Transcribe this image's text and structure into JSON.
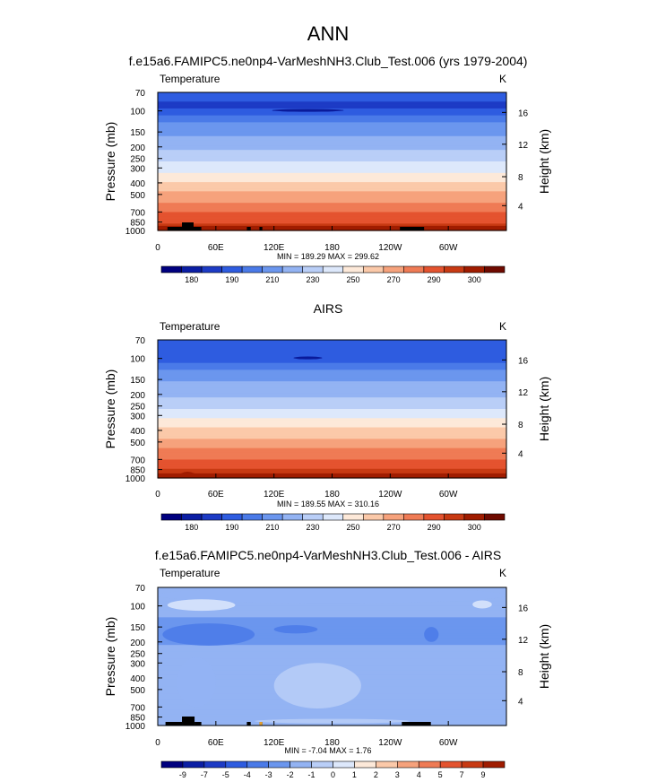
{
  "figure": {
    "main_title": "ANN",
    "unit_label": "K",
    "variable_label": "Temperature",
    "ylabel_left": "Pressure (mb)",
    "ylabel_right": "Height (km)"
  },
  "chart_data": [
    {
      "type": "heatmap",
      "title": "f.e15a6.FAMIPC5.ne0np4-VarMeshNH3.Club_Test.006 (yrs 1979-2004)",
      "variable": "Temperature",
      "units": "K",
      "xlabel": "",
      "ylabel": "Pressure (mb)",
      "ylabel_right": "Height (km)",
      "x_ticks": [
        "0",
        "60E",
        "120E",
        "180",
        "120W",
        "60W"
      ],
      "x_tick_lon": [
        0,
        60,
        120,
        180,
        240,
        300
      ],
      "xlim": [
        0,
        360
      ],
      "y_ticks": [
        "70",
        "100",
        "150",
        "200",
        "250",
        "300",
        "400",
        "500",
        "700",
        "850",
        "1000"
      ],
      "y_tick_values": [
        70,
        100,
        150,
        200,
        250,
        300,
        400,
        500,
        700,
        850,
        1000
      ],
      "ylim": [
        1000,
        70
      ],
      "right_ticks": [
        "16",
        "12",
        "8",
        "4"
      ],
      "right_tick_pressure": [
        103,
        190,
        355,
        620
      ],
      "stats": "MIN = 189.29  MAX = 299.62",
      "min": 189.29,
      "max": 299.62,
      "colorbar_labels": [
        "180",
        "190",
        "210",
        "230",
        "250",
        "270",
        "290",
        "300"
      ],
      "field_profile": [
        {
          "p": 70,
          "v": 192
        },
        {
          "p": 90,
          "v": 189.3
        },
        {
          "p": 100,
          "v": 191
        },
        {
          "p": 150,
          "v": 207
        },
        {
          "p": 200,
          "v": 217
        },
        {
          "p": 250,
          "v": 226
        },
        {
          "p": 300,
          "v": 236
        },
        {
          "p": 400,
          "v": 251
        },
        {
          "p": 500,
          "v": 262
        },
        {
          "p": 700,
          "v": 279
        },
        {
          "p": 850,
          "v": 289
        },
        {
          "p": 1000,
          "v": 299.6
        }
      ]
    },
    {
      "type": "heatmap",
      "title": "AIRS",
      "variable": "Temperature",
      "units": "K",
      "xlabel": "",
      "ylabel": "Pressure (mb)",
      "ylabel_right": "Height (km)",
      "x_ticks": [
        "0",
        "60E",
        "120E",
        "180",
        "120W",
        "60W"
      ],
      "x_tick_lon": [
        0,
        60,
        120,
        180,
        240,
        300
      ],
      "xlim": [
        0,
        360
      ],
      "y_ticks": [
        "70",
        "100",
        "150",
        "200",
        "250",
        "300",
        "400",
        "500",
        "700",
        "850",
        "1000"
      ],
      "y_tick_values": [
        70,
        100,
        150,
        200,
        250,
        300,
        400,
        500,
        700,
        850,
        1000
      ],
      "ylim": [
        1000,
        70
      ],
      "right_ticks": [
        "16",
        "12",
        "8",
        "4"
      ],
      "right_tick_pressure": [
        103,
        190,
        355,
        620
      ],
      "stats": "MIN = 189.55  MAX = 310.16",
      "min": 189.55,
      "max": 310.16,
      "colorbar_labels": [
        "180",
        "190",
        "210",
        "230",
        "250",
        "270",
        "290",
        "300"
      ],
      "field_profile": [
        {
          "p": 70,
          "v": 193
        },
        {
          "p": 90,
          "v": 190
        },
        {
          "p": 100,
          "v": 192
        },
        {
          "p": 150,
          "v": 208
        },
        {
          "p": 200,
          "v": 218
        },
        {
          "p": 250,
          "v": 227
        },
        {
          "p": 300,
          "v": 237
        },
        {
          "p": 400,
          "v": 252
        },
        {
          "p": 500,
          "v": 263
        },
        {
          "p": 700,
          "v": 280
        },
        {
          "p": 850,
          "v": 290
        },
        {
          "p": 1000,
          "v": 300
        }
      ]
    },
    {
      "type": "heatmap",
      "title": "f.e15a6.FAMIPC5.ne0np4-VarMeshNH3.Club_Test.006 - AIRS",
      "variable": "Temperature",
      "units": "K",
      "xlabel": "",
      "ylabel": "Pressure (mb)",
      "ylabel_right": "Height (km)",
      "x_ticks": [
        "0",
        "60E",
        "120E",
        "180",
        "120W",
        "60W"
      ],
      "x_tick_lon": [
        0,
        60,
        120,
        180,
        240,
        300
      ],
      "xlim": [
        0,
        360
      ],
      "y_ticks": [
        "70",
        "100",
        "150",
        "200",
        "250",
        "300",
        "400",
        "500",
        "700",
        "850",
        "1000"
      ],
      "y_tick_values": [
        70,
        100,
        150,
        200,
        250,
        300,
        400,
        500,
        700,
        850,
        1000
      ],
      "ylim": [
        1000,
        70
      ],
      "right_ticks": [
        "16",
        "12",
        "8",
        "4"
      ],
      "right_tick_pressure": [
        103,
        190,
        355,
        620
      ],
      "stats": "MIN = -7.04  MAX =  1.76",
      "min": -7.04,
      "max": 1.76,
      "colorbar_labels": [
        "-9",
        "-7",
        "-5",
        "-4",
        "-3",
        "-2",
        "-1",
        "0",
        "1",
        "2",
        "3",
        "4",
        "5",
        "7",
        "9"
      ],
      "field_profile": [
        {
          "p": 70,
          "v": -1.5
        },
        {
          "p": 100,
          "v": -1.3
        },
        {
          "p": 150,
          "v": -2.6
        },
        {
          "p": 200,
          "v": -2.2
        },
        {
          "p": 250,
          "v": -1.6
        },
        {
          "p": 300,
          "v": -1.5
        },
        {
          "p": 400,
          "v": -1.4
        },
        {
          "p": 500,
          "v": -1.3
        },
        {
          "p": 700,
          "v": -1.6
        },
        {
          "p": 850,
          "v": -1.2
        },
        {
          "p": 1000,
          "v": -1.5
        }
      ]
    }
  ],
  "colors": {
    "warm_scale": [
      "#00007f",
      "#0b1ea4",
      "#1d3bc5",
      "#2e5ce0",
      "#4a7ae8",
      "#6b96ee",
      "#93b3f3",
      "#b9cef7",
      "#dde8fb",
      "#fde9d9",
      "#fbc9a9",
      "#f6a27c",
      "#ef7b55",
      "#e4532f",
      "#c83a13",
      "#a01c00",
      "#6f0a00"
    ],
    "diff_scale": [
      "#00007f",
      "#0b1ea4",
      "#1d3bc5",
      "#2e5ce0",
      "#4a7ae8",
      "#6b96ee",
      "#93b3f3",
      "#b9cef7",
      "#dde8fb",
      "#fde9d9",
      "#fbc9a9",
      "#f6a27c",
      "#ef7b55",
      "#e4532f",
      "#c83a13",
      "#a01c00"
    ]
  }
}
